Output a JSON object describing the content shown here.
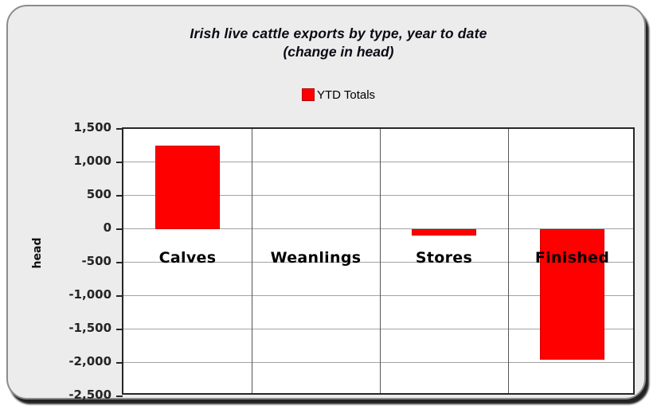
{
  "chart_data": {
    "type": "bar",
    "title": "Irish live cattle exports by type, year to date",
    "subtitle": "(change in head)",
    "ylabel": "head",
    "xlabel": "",
    "legend": [
      {
        "label": "YTD Totals",
        "color": "#ff0000"
      }
    ],
    "legend_position": "top",
    "categories": [
      "Calves",
      "Weanlings",
      "Stores",
      "Finished"
    ],
    "values": [
      1250,
      0,
      -100,
      -1950
    ],
    "ylim": [
      -2500,
      1500
    ],
    "ytick_step": 500,
    "ytick_labels": [
      "1,500",
      "1,000",
      "500",
      "0",
      "-500",
      "-1,000",
      "-1,500",
      "-2,000",
      "-2,500"
    ],
    "grid": true,
    "bar_color": "#ff0000",
    "bar_border_color": "#d40000"
  }
}
